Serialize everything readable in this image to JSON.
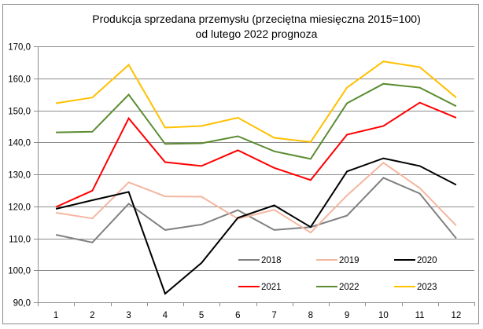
{
  "chart_data": {
    "type": "line",
    "title": "Produkcja sprzedana przemysłu (przeciętna miesięczna 2015=100)",
    "subtitle": "od lutego 2022 prognoza",
    "xlabel": "",
    "ylabel": "",
    "categories": [
      "1",
      "2",
      "3",
      "4",
      "5",
      "6",
      "7",
      "8",
      "9",
      "10",
      "11",
      "12"
    ],
    "ylim": [
      90,
      170
    ],
    "y_ticks": [
      "90,0",
      "100,0",
      "110,0",
      "120,0",
      "130,0",
      "140,0",
      "150,0",
      "160,0",
      "170,0"
    ],
    "y_tick_values": [
      90,
      100,
      110,
      120,
      130,
      140,
      150,
      160,
      170
    ],
    "grid": true,
    "legend_position": "bottom-right-inside",
    "series": [
      {
        "name": "2018",
        "color": "#808080",
        "values": [
          111.1,
          108.7,
          120.8,
          112.6,
          114.3,
          118.8,
          112.6,
          113.5,
          117.1,
          128.9,
          124.0,
          110.0
        ]
      },
      {
        "name": "2019",
        "color": "#F4B6A0",
        "values": [
          118.0,
          116.2,
          127.5,
          123.1,
          123.0,
          116.1,
          118.9,
          111.8,
          123.4,
          133.6,
          125.7,
          114.0
        ]
      },
      {
        "name": "2020",
        "color": "#000000",
        "values": [
          119.2,
          121.9,
          124.5,
          92.7,
          102.3,
          116.4,
          120.3,
          113.5,
          130.9,
          135.0,
          132.6,
          126.7
        ]
      },
      {
        "name": "2021",
        "color": "#FF0000",
        "values": [
          119.8,
          124.9,
          147.5,
          133.8,
          132.6,
          137.5,
          132.0,
          128.2,
          142.4,
          145.1,
          152.4,
          147.7
        ]
      },
      {
        "name": "2022",
        "color": "#5B8C32",
        "values": [
          143.1,
          143.3,
          154.9,
          139.5,
          139.7,
          141.9,
          137.2,
          134.8,
          152.2,
          158.3,
          157.1,
          151.3
        ]
      },
      {
        "name": "2023",
        "color": "#FFC000",
        "values": [
          152.2,
          154.0,
          164.2,
          144.6,
          145.1,
          147.7,
          141.4,
          140.1,
          157.1,
          165.3,
          163.5,
          154.0
        ]
      }
    ]
  }
}
